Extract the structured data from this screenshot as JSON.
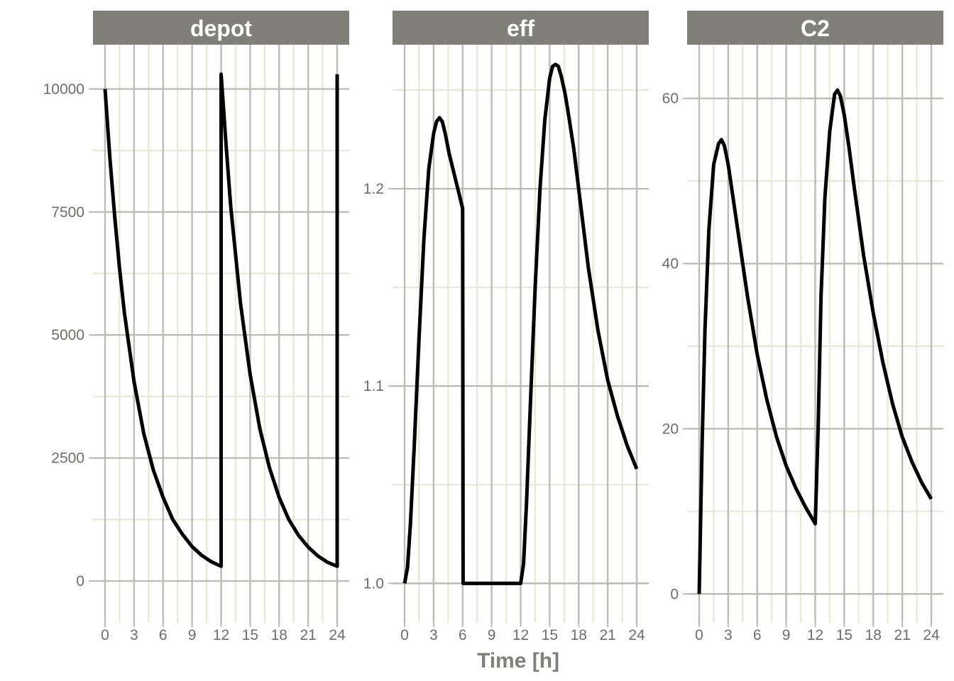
{
  "chart_data": {
    "type": "line",
    "xlabel": "Time [h]",
    "x_ticks": [
      0,
      3,
      6,
      9,
      12,
      15,
      18,
      21,
      24
    ],
    "xlim": [
      0,
      24
    ],
    "colors": {
      "strip_bg": "#808078",
      "strip_text": "#ffffff",
      "grid_major": "#bcbcb2",
      "grid_minor": "#e6e8d8",
      "line": "#000000",
      "tick_label": "#6e6e68",
      "axis_title": "#808078"
    },
    "panels": [
      {
        "title": "depot",
        "ylim": [
          -850,
          10900
        ],
        "y_ticks": [
          0,
          2500,
          5000,
          7500,
          10000
        ],
        "y_tick_labels": [
          "0",
          "2500",
          "5000",
          "7500",
          "10000"
        ],
        "x": [
          0,
          0.5,
          1,
          1.5,
          2,
          3,
          4,
          5,
          6,
          7,
          8,
          9,
          10,
          11,
          12,
          12,
          12.5,
          13,
          14,
          15,
          16,
          17,
          18,
          19,
          20,
          21,
          22,
          23,
          24,
          24
        ],
        "y": [
          10000,
          8600,
          7400,
          6350,
          5450,
          4050,
          3000,
          2250,
          1700,
          1250,
          950,
          700,
          520,
          390,
          300,
          10300,
          8900,
          7600,
          5650,
          4200,
          3100,
          2300,
          1700,
          1250,
          930,
          690,
          510,
          380,
          300,
          10300
        ]
      },
      {
        "title": "eff",
        "ylim": [
          0.98,
          1.273
        ],
        "y_ticks": [
          1.0,
          1.1,
          1.2
        ],
        "y_tick_labels": [
          "1.0",
          "1.1",
          "1.2"
        ],
        "x": [
          0,
          0.3,
          0.6,
          1,
          1.5,
          2,
          2.5,
          3,
          3.3,
          3.6,
          3.9,
          4.2,
          4.6,
          5,
          5.5,
          6,
          6.05,
          8,
          10,
          12,
          12.3,
          12.6,
          13,
          13.5,
          14,
          14.5,
          15,
          15.3,
          15.6,
          15.9,
          16.2,
          16.6,
          17,
          17.5,
          18,
          18.5,
          19,
          20,
          21,
          22,
          23,
          24
        ],
        "y": [
          1.0,
          1.008,
          1.03,
          1.07,
          1.125,
          1.175,
          1.21,
          1.228,
          1.234,
          1.236,
          1.234,
          1.228,
          1.218,
          1.21,
          1.2,
          1.19,
          1.0,
          1.0,
          1.0,
          1.0,
          1.01,
          1.04,
          1.09,
          1.15,
          1.2,
          1.235,
          1.256,
          1.262,
          1.263,
          1.262,
          1.257,
          1.248,
          1.236,
          1.22,
          1.2,
          1.18,
          1.16,
          1.128,
          1.103,
          1.085,
          1.07,
          1.058
        ]
      },
      {
        "title": "C2",
        "ylim": [
          -3.5,
          66.5
        ],
        "y_ticks": [
          0,
          20,
          40,
          60
        ],
        "y_tick_labels": [
          "0",
          "20",
          "40",
          "60"
        ],
        "x": [
          0,
          0.3,
          0.6,
          1,
          1.5,
          2,
          2.3,
          2.6,
          3,
          3.5,
          4,
          5,
          6,
          7,
          8,
          9,
          10,
          11,
          12,
          12.3,
          12.6,
          13,
          13.5,
          14,
          14.3,
          14.6,
          15,
          15.5,
          16,
          17,
          18,
          19,
          20,
          21,
          22,
          23,
          24
        ],
        "y": [
          0,
          18,
          32,
          44,
          52,
          54.5,
          55,
          54.3,
          52,
          48,
          44,
          36,
          29,
          23.5,
          19,
          15.5,
          12.8,
          10.5,
          8.5,
          20,
          36,
          48,
          56,
          60.5,
          61,
          60.3,
          58,
          54,
          49.5,
          41,
          34,
          28,
          23,
          19,
          16,
          13.5,
          11.5
        ]
      }
    ]
  }
}
